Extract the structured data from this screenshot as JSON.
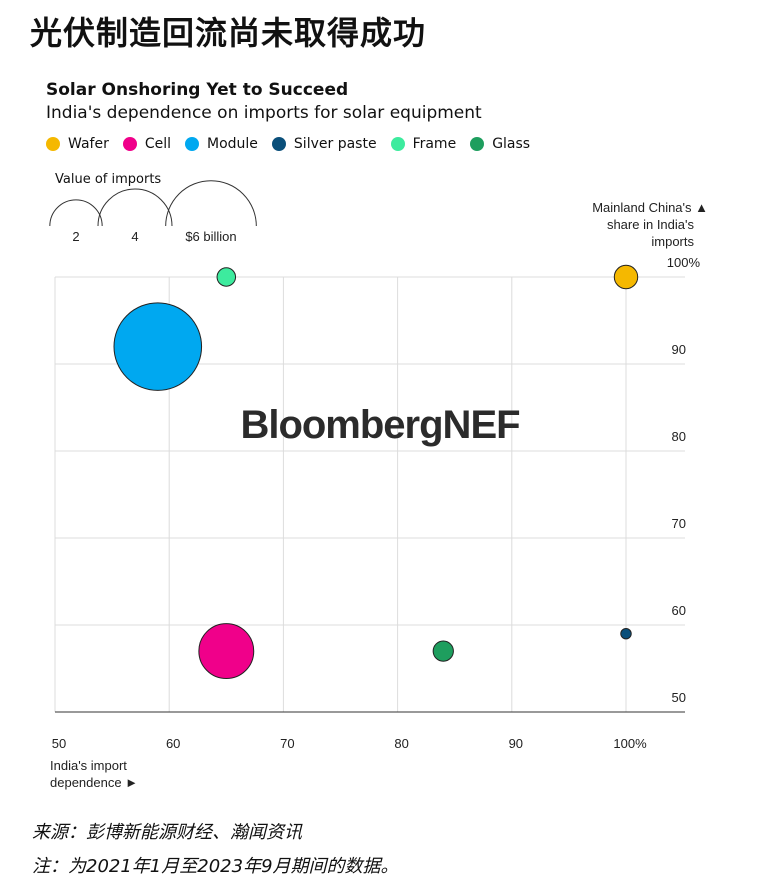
{
  "headline": "光伏制造回流尚未取得成功",
  "chart_data": {
    "type": "scatter",
    "title": "Solar Onshoring Yet to Succeed",
    "subtitle": "India's dependence on imports for solar equipment",
    "xlabel": "India's import dependence ►",
    "ylabel": "Mainland China's ▲ share in India's imports",
    "xlim": [
      50,
      105
    ],
    "ylim": [
      50,
      100
    ],
    "x_ticks": [
      "50",
      "60",
      "70",
      "80",
      "90",
      "100%"
    ],
    "y_ticks": [
      "50",
      "60",
      "70",
      "80",
      "90",
      "100%"
    ],
    "size_legend_title": "Value of imports",
    "size_legend": [
      {
        "value": 2,
        "label": "2"
      },
      {
        "value": 4,
        "label": "4"
      },
      {
        "value": 6,
        "label": "$6 billion"
      }
    ],
    "watermark": "BloombergNEF",
    "series": [
      {
        "name": "Wafer",
        "x": 100,
        "y": 100,
        "value": 0.4,
        "color": "#F5B800"
      },
      {
        "name": "Cell",
        "x": 65,
        "y": 57,
        "value": 2.2,
        "color": "#F0008A"
      },
      {
        "name": "Module",
        "x": 59,
        "y": 92,
        "value": 5.6,
        "color": "#00A8F0"
      },
      {
        "name": "Silver paste",
        "x": 100,
        "y": 59,
        "value": 0.08,
        "color": "#0A4F7A"
      },
      {
        "name": "Frame",
        "x": 65,
        "y": 100,
        "value": 0.25,
        "color": "#3DEB9E"
      },
      {
        "name": "Glass",
        "x": 84,
        "y": 57,
        "value": 0.3,
        "color": "#1E9E5E"
      }
    ]
  },
  "footer": {
    "source": "来源：彭博新能源财经、瀚闻资讯",
    "note": "注：为2021年1月至2023年9月期间的数据。"
  }
}
